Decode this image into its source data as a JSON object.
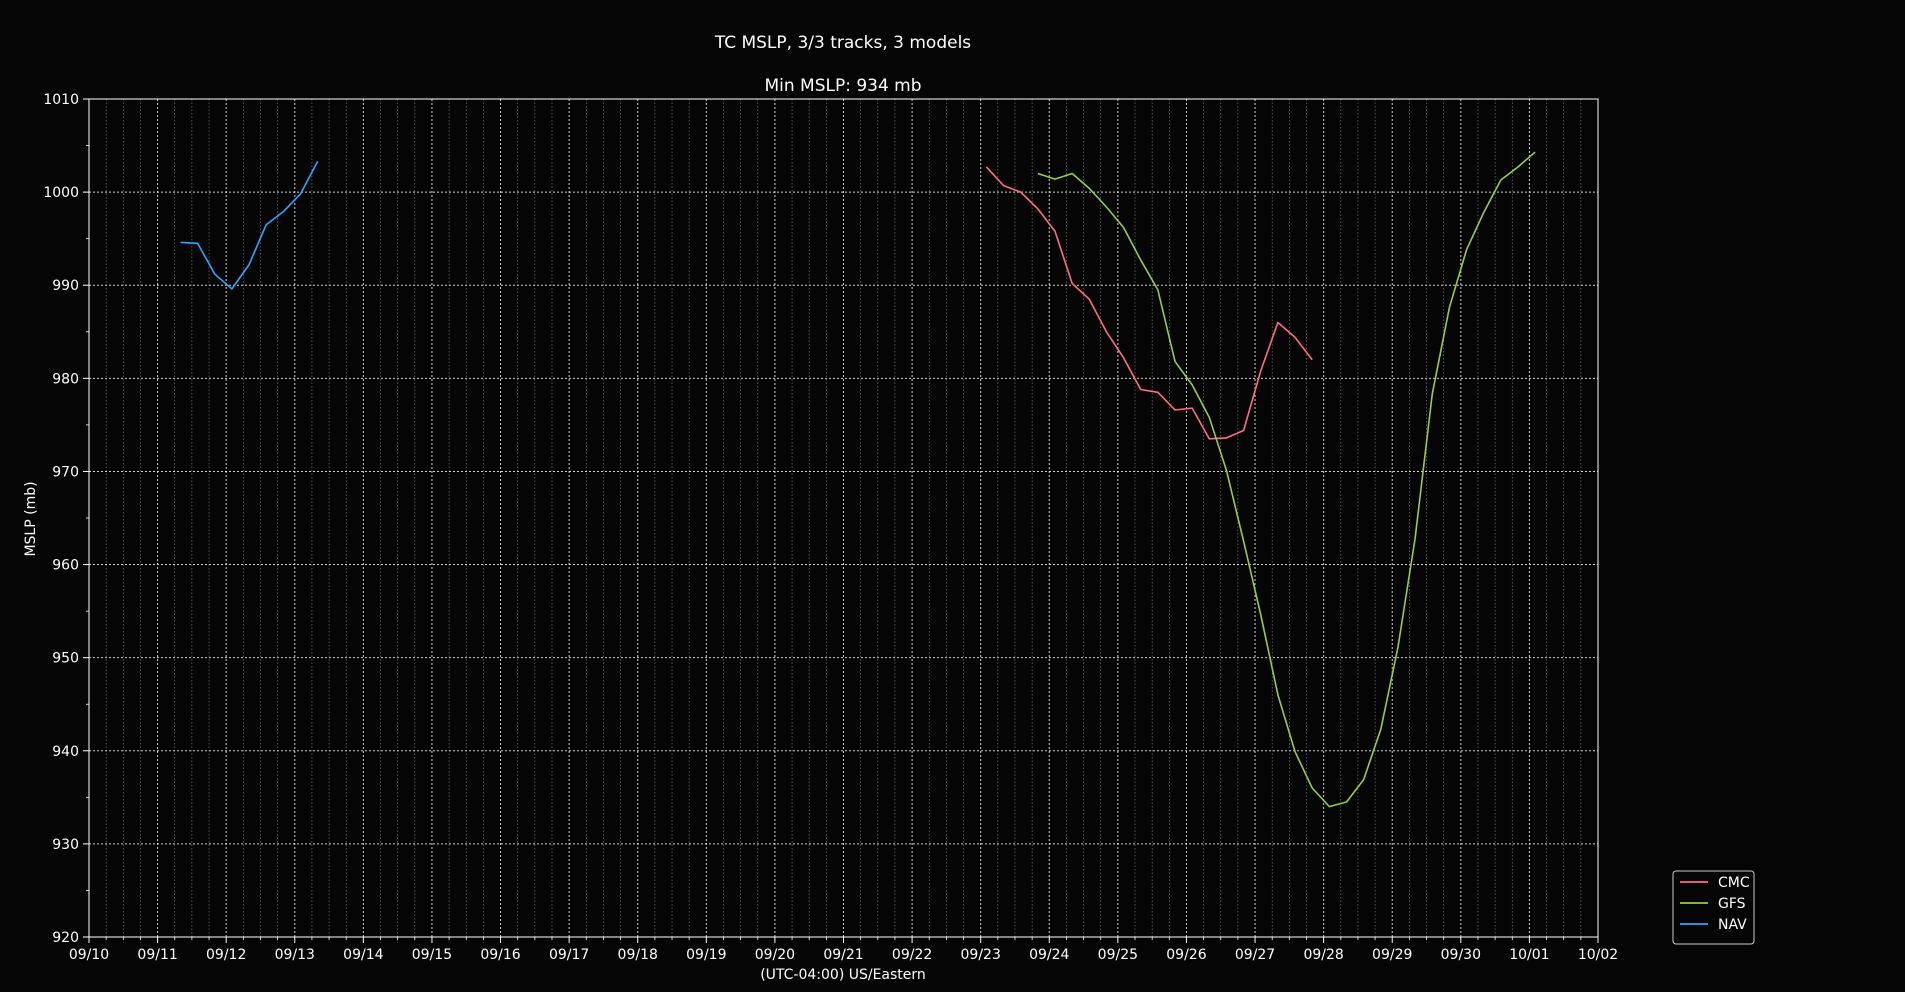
{
  "chart_data": {
    "type": "line",
    "title": "TC MSLP, 3/3 tracks, 3 models",
    "subtitle": "Min MSLP: 934 mb",
    "xlabel": "(UTC-04:00) US/Eastern",
    "ylabel": "MSLP (mb)",
    "xlim": [
      "09/10",
      "10/02"
    ],
    "ylim": [
      920,
      1010
    ],
    "x_ticks": [
      "09/10",
      "09/11",
      "09/12",
      "09/13",
      "09/14",
      "09/15",
      "09/16",
      "09/17",
      "09/18",
      "09/19",
      "09/20",
      "09/21",
      "09/22",
      "09/23",
      "09/24",
      "09/25",
      "09/26",
      "09/27",
      "09/28",
      "09/29",
      "09/30",
      "10/01",
      "10/02"
    ],
    "y_ticks": [
      920,
      930,
      940,
      950,
      960,
      970,
      980,
      990,
      1000,
      1010
    ],
    "grid": true,
    "legend_position": "bottom-right",
    "background": "#050505",
    "series": [
      {
        "name": "CMC",
        "color": "#ff6b8a",
        "points": [
          [
            "09/23 02:00",
            1002.7
          ],
          [
            "09/23 08:00",
            1000.7
          ],
          [
            "09/23 14:00",
            1000.0
          ],
          [
            "09/23 20:00",
            998.2
          ],
          [
            "09/24 02:00",
            995.8
          ],
          [
            "09/24 08:00",
            990.2
          ],
          [
            "09/24 14:00",
            988.5
          ],
          [
            "09/24 20:00",
            985.0
          ],
          [
            "09/25 02:00",
            982.2
          ],
          [
            "09/25 08:00",
            978.8
          ],
          [
            "09/25 14:00",
            978.5
          ],
          [
            "09/25 20:00",
            976.6
          ],
          [
            "09/26 02:00",
            976.8
          ],
          [
            "09/26 08:00",
            973.5
          ],
          [
            "09/26 14:00",
            973.6
          ],
          [
            "09/26 20:00",
            974.4
          ],
          [
            "09/27 02:00",
            980.8
          ],
          [
            "09/27 08:00",
            986.0
          ],
          [
            "09/27 14:00",
            984.4
          ],
          [
            "09/27 20:00",
            982.0
          ]
        ]
      },
      {
        "name": "GFS",
        "color": "#9ccc3c",
        "points": [
          [
            "09/23 20:00",
            1002.0
          ],
          [
            "09/24 02:00",
            1001.4
          ],
          [
            "09/24 08:00",
            1002.0
          ],
          [
            "09/24 14:00",
            1000.4
          ],
          [
            "09/24 20:00",
            998.4
          ],
          [
            "09/25 02:00",
            996.2
          ],
          [
            "09/25 08:00",
            992.7
          ],
          [
            "09/25 14:00",
            989.5
          ],
          [
            "09/25 20:00",
            981.8
          ],
          [
            "09/26 02:00",
            979.3
          ],
          [
            "09/26 08:00",
            975.8
          ],
          [
            "09/26 14:00",
            970.1
          ],
          [
            "09/26 20:00",
            962.5
          ],
          [
            "09/27 02:00",
            954.6
          ],
          [
            "09/27 08:00",
            946.0
          ],
          [
            "09/27 14:00",
            939.9
          ],
          [
            "09/27 20:00",
            936.0
          ],
          [
            "09/28 02:00",
            934.0
          ],
          [
            "09/28 08:00",
            934.5
          ],
          [
            "09/28 14:00",
            936.9
          ],
          [
            "09/28 20:00",
            942.3
          ],
          [
            "09/29 02:00",
            951.1
          ],
          [
            "09/29 08:00",
            962.8
          ],
          [
            "09/29 14:00",
            978.3
          ],
          [
            "09/29 20:00",
            987.6
          ],
          [
            "09/30 02:00",
            993.8
          ],
          [
            "09/30 08:00",
            997.8
          ],
          [
            "09/30 14:00",
            1001.3
          ],
          [
            "09/30 20:00",
            1002.7
          ],
          [
            "10/01 02:00",
            1004.3
          ]
        ]
      },
      {
        "name": "NAV",
        "color": "#29a8ff",
        "points": [
          [
            "09/11 08:00",
            994.6
          ],
          [
            "09/11 14:00",
            994.5
          ],
          [
            "09/11 20:00",
            991.2
          ],
          [
            "09/12 02:00",
            989.6
          ],
          [
            "09/12 08:00",
            992.2
          ],
          [
            "09/12 14:00",
            996.5
          ],
          [
            "09/12 20:00",
            997.9
          ],
          [
            "09/13 02:00",
            999.8
          ],
          [
            "09/13 08:00",
            1003.3
          ]
        ]
      }
    ]
  }
}
